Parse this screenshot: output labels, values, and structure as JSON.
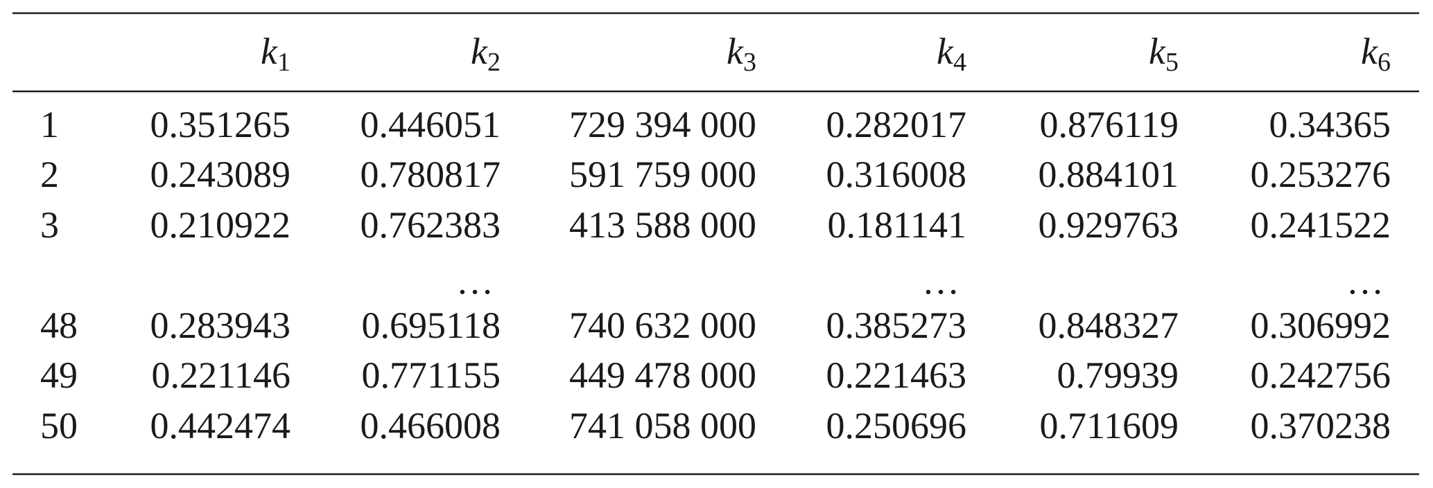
{
  "table": {
    "columns": [
      {
        "symbol": "k",
        "index": "1"
      },
      {
        "symbol": "k",
        "index": "2"
      },
      {
        "symbol": "k",
        "index": "3"
      },
      {
        "symbol": "k",
        "index": "4"
      },
      {
        "symbol": "k",
        "index": "5"
      },
      {
        "symbol": "k",
        "index": "6"
      }
    ],
    "rows": [
      [
        "1",
        "0.351265",
        "0.446051",
        "729 394 000",
        "0.282017",
        "0.876119",
        "0.34365"
      ],
      [
        "2",
        "0.243089",
        "0.780817",
        "591 759 000",
        "0.316008",
        "0.884101",
        "0.253276"
      ],
      [
        "3",
        "0.210922",
        "0.762383",
        "413 588 000",
        "0.181141",
        "0.929763",
        "0.241522"
      ],
      [
        null,
        null,
        "…",
        null,
        "…",
        null,
        "…"
      ],
      [
        "48",
        "0.283943",
        "0.695118",
        "740 632 000",
        "0.385273",
        "0.848327",
        "0.306992"
      ],
      [
        "49",
        "0.221146",
        "0.771155",
        "449 478 000",
        "0.221463",
        "0.79939",
        "0.242756"
      ],
      [
        "50",
        "0.442474",
        "0.466008",
        "741 058 000",
        "0.250696",
        "0.711609",
        "0.370238"
      ]
    ]
  }
}
